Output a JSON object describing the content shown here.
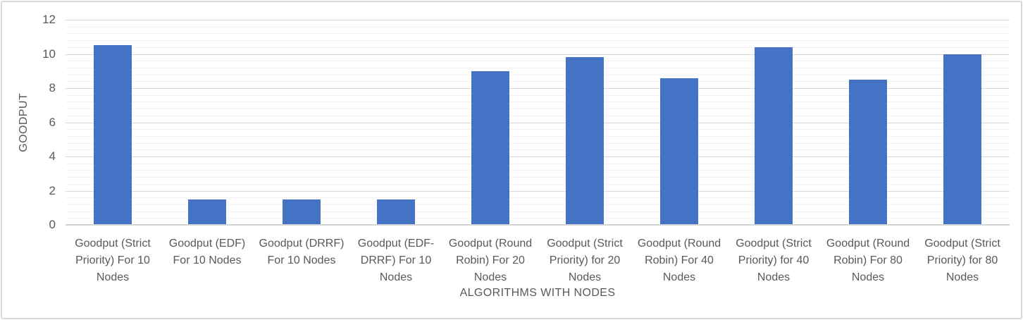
{
  "chart_data": {
    "type": "bar",
    "title": "",
    "xlabel": "ALGORITHMS WITH NODES",
    "ylabel": "GOODPUT",
    "categories": [
      "Goodput (Strict Priority) For 10 Nodes",
      "Goodput (EDF) For 10 Nodes",
      "Goodput (DRRF) For 10 Nodes",
      "Goodput (EDF-DRRF) For 10 Nodes",
      "Goodput (Round Robin) For 20 Nodes",
      "Goodput (Strict Priority) for 20 Nodes",
      "Goodput (Round Robin) For 40 Nodes",
      "Goodput (Strict Priority) for 40 Nodes",
      "Goodput (Round Robin) For 80 Nodes",
      "Goodput (Strict Priority) for 80 Nodes"
    ],
    "values": [
      10.5,
      1.5,
      1.5,
      1.5,
      9.0,
      9.8,
      8.6,
      10.4,
      8.5,
      10.0
    ],
    "ylim": [
      0,
      12
    ],
    "yticks": [
      0,
      2,
      4,
      6,
      8,
      10,
      12
    ],
    "y_major_unit": 2,
    "y_minor_unit": 0.4,
    "grid": "major-and-minor horizontal",
    "legend": "none",
    "colors": {
      "bar": "#4472c4",
      "text": "#595959",
      "major_gridline": "#d9d9d9",
      "minor_gridline": "#f2f2f2",
      "axis_line": "#d3d3d3",
      "frame_border": "#d9d9d9",
      "background": "#ffffff"
    }
  }
}
